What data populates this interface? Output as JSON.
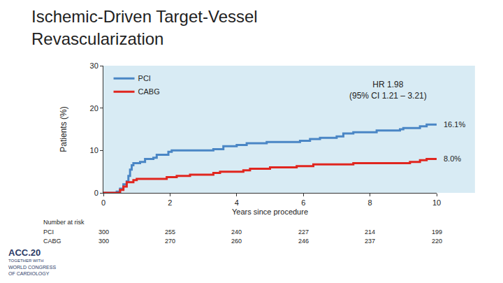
{
  "chart_data": {
    "type": "step",
    "title": "Ischemic-Driven Target-Vessel\nRevascularization",
    "x_label": "Years since procedure",
    "y_label": "Patients (%)",
    "xlim": [
      0,
      10
    ],
    "xticks": [
      0,
      2,
      4,
      6,
      8,
      10
    ],
    "ylim": [
      0,
      30
    ],
    "yticks": [
      0,
      10,
      20,
      30
    ],
    "grid": false,
    "legend": "upper left",
    "series": [
      {
        "name": "PCI",
        "color": "#4a86c5",
        "x": [
          0,
          0.4,
          0.5,
          0.6,
          0.7,
          0.75,
          0.8,
          0.85,
          0.9,
          1.1,
          1.25,
          1.5,
          1.6,
          1.95,
          2.05,
          3.3,
          3.6,
          4.0,
          4.3,
          4.9,
          5.9,
          6.2,
          6.5,
          7.0,
          7.2,
          7.5,
          8.2,
          8.9,
          9.0,
          9.5,
          9.7,
          10
        ],
        "values": [
          0,
          0.3,
          1.0,
          2.0,
          2.7,
          4.0,
          5.5,
          6.5,
          7.0,
          7.3,
          8.0,
          8.3,
          9.0,
          9.7,
          10.0,
          10.3,
          11.0,
          11.3,
          11.7,
          12.0,
          12.3,
          12.7,
          13.0,
          13.3,
          14.0,
          14.3,
          14.7,
          15.0,
          15.3,
          15.7,
          16.1,
          16.1
        ],
        "value_labels": [
          null,
          null,
          null,
          null,
          null,
          null,
          null,
          null,
          null,
          null,
          null,
          null,
          null,
          null,
          null,
          null,
          null,
          null,
          null,
          null,
          null,
          null,
          null,
          null,
          null,
          null,
          null,
          null,
          null,
          null,
          null,
          "16.1%"
        ]
      },
      {
        "name": "CABG",
        "color": "#e0261f",
        "x": [
          0,
          0.5,
          0.6,
          0.7,
          0.9,
          1.0,
          1.9,
          2.2,
          2.6,
          3.3,
          3.5,
          4.2,
          4.4,
          5.0,
          5.8,
          6.3,
          7.5,
          9.2,
          9.5,
          9.7,
          10
        ],
        "values": [
          0,
          0.7,
          1.5,
          2.5,
          3.0,
          3.3,
          3.7,
          4.0,
          4.3,
          4.7,
          5.0,
          5.3,
          5.7,
          6.0,
          6.3,
          6.7,
          7.0,
          7.3,
          7.7,
          8.0,
          8.0
        ],
        "value_labels": [
          null,
          null,
          null,
          null,
          null,
          null,
          null,
          null,
          null,
          null,
          null,
          null,
          null,
          null,
          null,
          null,
          null,
          null,
          null,
          null,
          "8.0%"
        ]
      }
    ],
    "annotations": [
      "HR 1.98\n(95% CI 1.21 – 3.21)"
    ],
    "number_at_risk": {
      "title": "Number at risk",
      "x": [
        0,
        2,
        4,
        6,
        8,
        10
      ],
      "rows": [
        {
          "name": "PCI",
          "values": [
            300,
            255,
            240,
            227,
            214,
            199
          ]
        },
        {
          "name": "CABG",
          "values": [
            300,
            270,
            260,
            246,
            237,
            220
          ]
        }
      ]
    },
    "footer": [
      "ACC.20",
      "TOGETHER WITH",
      "WORLD CONGRESS",
      "OF CARDIOLOGY"
    ]
  }
}
